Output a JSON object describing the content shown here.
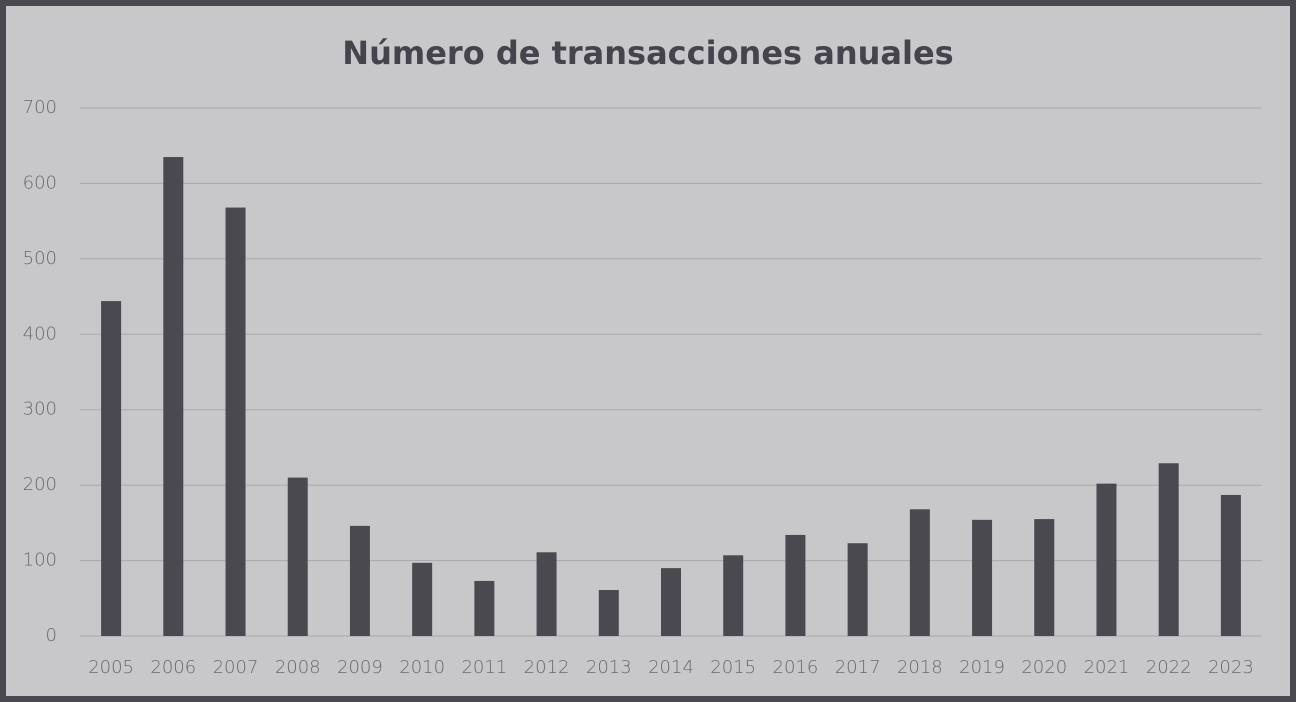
{
  "chart_data": {
    "type": "bar",
    "title": "Número de transacciones anuales",
    "categories": [
      "2005",
      "2006",
      "2007",
      "2008",
      "2009",
      "2010",
      "2011",
      "2012",
      "2013",
      "2014",
      "2015",
      "2016",
      "2017",
      "2018",
      "2019",
      "2020",
      "2021",
      "2022",
      "2023"
    ],
    "values": [
      444,
      635,
      568,
      210,
      146,
      97,
      73,
      111,
      61,
      90,
      107,
      134,
      123,
      168,
      154,
      155,
      202,
      229,
      187
    ],
    "color": "#4a4950",
    "ylim": [
      0,
      700
    ],
    "yticks": [
      0,
      100,
      200,
      300,
      400,
      500,
      600,
      700
    ],
    "grid": true
  }
}
